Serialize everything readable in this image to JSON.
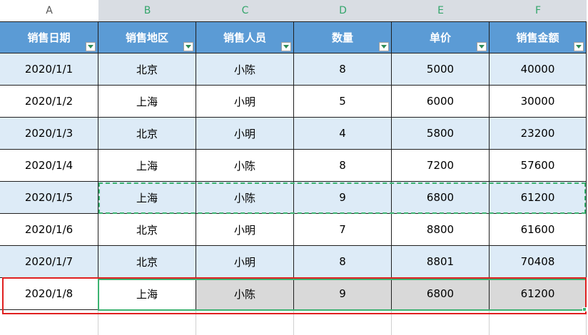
{
  "columns": [
    "A",
    "B",
    "C",
    "D",
    "E",
    "F"
  ],
  "headers": [
    "销售日期",
    "销售地区",
    "销售人员",
    "数量",
    "单价",
    "销售金额"
  ],
  "rows": [
    [
      "2020/1/1",
      "北京",
      "小陈",
      "8",
      "5000",
      "40000"
    ],
    [
      "2020/1/2",
      "上海",
      "小明",
      "5",
      "6000",
      "30000"
    ],
    [
      "2020/1/3",
      "北京",
      "小明",
      "4",
      "5800",
      "23200"
    ],
    [
      "2020/1/4",
      "上海",
      "小陈",
      "8",
      "7200",
      "57600"
    ],
    [
      "2020/1/5",
      "上海",
      "小陈",
      "9",
      "6800",
      "61200"
    ],
    [
      "2020/1/6",
      "北京",
      "小明",
      "7",
      "8800",
      "61600"
    ],
    [
      "2020/1/7",
      "北京",
      "小明",
      "8",
      "8801",
      "70408"
    ],
    [
      "2020/1/8",
      "上海",
      "小陈",
      "9",
      "6800",
      "61200"
    ]
  ],
  "colors": {
    "header_bg": "#5b9bd5",
    "band_bg": "#ddebf7",
    "selection": "#3cb371",
    "highlight_border": "#e02020",
    "gray_cells": "#d9d9d9"
  },
  "icons": {
    "filter": "filter-dropdown-icon"
  }
}
